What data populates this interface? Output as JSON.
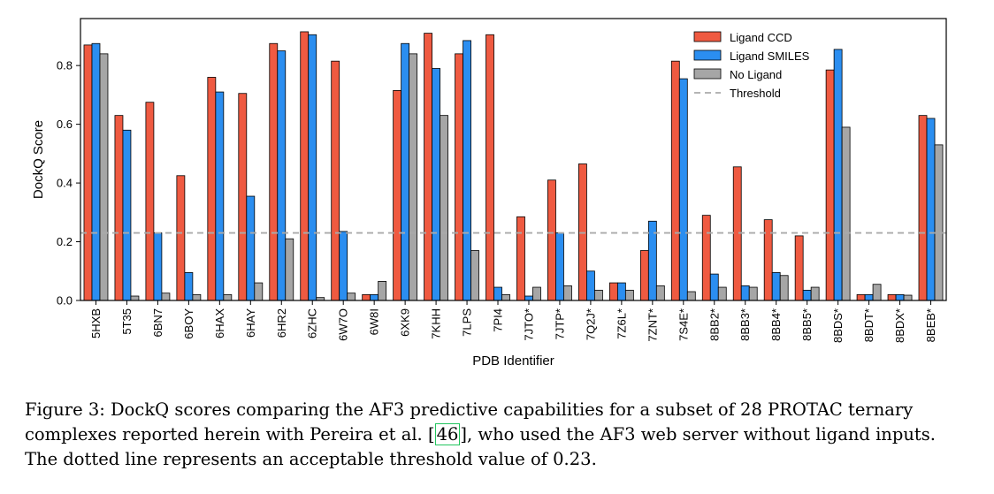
{
  "chart_data": {
    "type": "bar",
    "xlabel": "PDB Identifier",
    "ylabel": "DockQ Score",
    "ylim": [
      0,
      0.96
    ],
    "yticks": [
      "0.0",
      "0.2",
      "0.4",
      "0.6",
      "0.8"
    ],
    "categories": [
      "5HXB",
      "5T35",
      "6BN7",
      "6BOY",
      "6HAX",
      "6HAY",
      "6HR2",
      "6ZHC",
      "6W7O",
      "6W8I",
      "6XK9",
      "7KHH",
      "7LPS",
      "7PI4",
      "7JTO*",
      "7JTP*",
      "7Q2J*",
      "7Z6L*",
      "7ZNT*",
      "7S4E*",
      "8BB2*",
      "8BB3*",
      "8BB4*",
      "8BB5*",
      "8BDS*",
      "8BDT*",
      "8BDX*",
      "8BEB*"
    ],
    "series": [
      {
        "name": "Ligand CCD",
        "color": "#ef5a41",
        "values": [
          0.87,
          0.63,
          0.675,
          0.425,
          0.76,
          0.705,
          0.875,
          0.915,
          0.815,
          0.02,
          0.715,
          0.91,
          0.84,
          0.905,
          0.285,
          0.41,
          0.465,
          0.06,
          0.17,
          0.815,
          0.29,
          0.455,
          0.275,
          0.22,
          0.785,
          0.02,
          0.02,
          0.63
        ]
      },
      {
        "name": "Ligand SMILES",
        "color": "#2b8ef0",
        "values": [
          0.875,
          0.58,
          0.23,
          0.095,
          0.71,
          0.355,
          0.85,
          0.905,
          0.235,
          0.02,
          0.875,
          0.79,
          0.885,
          0.045,
          0.015,
          0.23,
          0.1,
          0.06,
          0.27,
          0.755,
          0.09,
          0.05,
          0.095,
          0.035,
          0.855,
          0.02,
          0.02,
          0.62
        ]
      },
      {
        "name": "No Ligand",
        "color": "#a6a6a6",
        "values": [
          0.84,
          0.015,
          0.025,
          0.02,
          0.02,
          0.06,
          0.21,
          0.01,
          0.025,
          0.065,
          0.84,
          0.63,
          0.17,
          0.02,
          0.045,
          0.05,
          0.035,
          0.035,
          0.05,
          0.03,
          0.045,
          0.045,
          0.085,
          0.045,
          0.59,
          0.055,
          0.018,
          0.53
        ]
      }
    ],
    "threshold": {
      "name": "Threshold",
      "value": 0.23,
      "color": "#aaaaaa"
    },
    "legend_position": "top-right",
    "grid": false
  },
  "caption": {
    "before": "Figure 3: DockQ scores comparing the AF3 predictive capabilities for a subset of 28 PROTAC ternary complexes reported herein with Pereira et al. ",
    "citation": "46",
    "after": ", who used the AF3 web server without ligand inputs. The dotted line represents an acceptable threshold value of 0.23."
  }
}
